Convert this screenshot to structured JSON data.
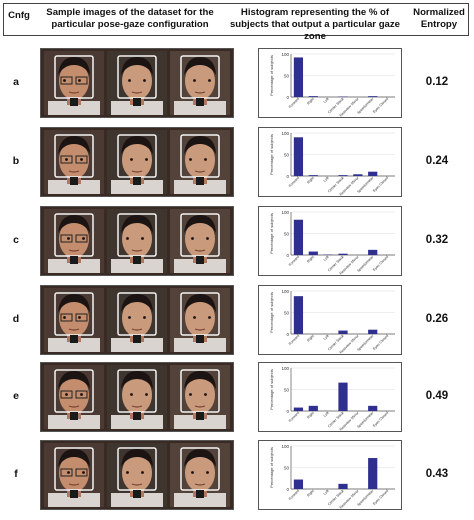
{
  "header": {
    "cnfg": "Cnfg",
    "samples": "Sample images of the dataset for the particular pose-gaze configuration",
    "histogram": "Histogram representing the % of subjects that output a particular gaze zone",
    "entropy": "Normalized Entropy"
  },
  "icons": [
    "face-photo"
  ],
  "rows": [
    {
      "label": "a",
      "entropy": "0.12"
    },
    {
      "label": "b",
      "entropy": "0.24"
    },
    {
      "label": "c",
      "entropy": "0.32"
    },
    {
      "label": "d",
      "entropy": "0.26"
    },
    {
      "label": "e",
      "entropy": "0.49"
    },
    {
      "label": "f",
      "entropy": "0.43"
    }
  ],
  "chart_data": [
    {
      "type": "bar",
      "row": "a",
      "categories": [
        "Forward",
        "Right",
        "Left",
        "Center Stack",
        "Rearview Mirror",
        "Speedometer",
        "Eyes Closed"
      ],
      "values": [
        92,
        2,
        0,
        1,
        0,
        2,
        0
      ],
      "ylim": [
        0,
        100
      ],
      "ylabel": "Percentage of subjects",
      "yticks": [
        "100",
        "50",
        "0"
      ]
    },
    {
      "type": "bar",
      "row": "b",
      "categories": [
        "Forward",
        "Right",
        "Left",
        "Center Stack",
        "Rearview Mirror",
        "Speedometer",
        "Eyes Closed"
      ],
      "values": [
        90,
        2,
        0,
        2,
        4,
        10,
        0
      ],
      "ylim": [
        0,
        100
      ],
      "ylabel": "Percentage of subjects",
      "yticks": [
        "100",
        "50",
        "0"
      ]
    },
    {
      "type": "bar",
      "row": "c",
      "categories": [
        "Forward",
        "Right",
        "Left",
        "Center Stack",
        "Rearview Mirror",
        "Speedometer",
        "Eyes Closed"
      ],
      "values": [
        82,
        8,
        1,
        3,
        0,
        12,
        0
      ],
      "ylim": [
        0,
        100
      ],
      "ylabel": "Percentage of subjects",
      "yticks": [
        "100",
        "50",
        "0"
      ]
    },
    {
      "type": "bar",
      "row": "d",
      "categories": [
        "Forward",
        "Right",
        "Left",
        "Center Stack",
        "Rearview Mirror",
        "Speedometer",
        "Eyes Closed"
      ],
      "values": [
        88,
        0,
        0,
        8,
        0,
        10,
        0
      ],
      "ylim": [
        0,
        100
      ],
      "ylabel": "Percentage of subjects",
      "yticks": [
        "100",
        "50",
        "0"
      ]
    },
    {
      "type": "bar",
      "row": "e",
      "categories": [
        "Forward",
        "Right",
        "Left",
        "Center Stack",
        "Rearview Mirror",
        "Speedometer",
        "Eyes Closed"
      ],
      "values": [
        8,
        12,
        0,
        66,
        0,
        12,
        0
      ],
      "ylim": [
        0,
        100
      ],
      "ylabel": "Percentage of subjects",
      "yticks": [
        "100",
        "50",
        "0"
      ]
    },
    {
      "type": "bar",
      "row": "f",
      "categories": [
        "Forward",
        "Right",
        "Left",
        "Center Stack",
        "Rearview Mirror",
        "Speedometer",
        "Eyes Closed"
      ],
      "values": [
        22,
        0,
        0,
        12,
        0,
        72,
        0
      ],
      "ylim": [
        0,
        100
      ],
      "ylabel": "Percentage of subjects",
      "yticks": [
        "100",
        "50",
        "0"
      ]
    }
  ]
}
